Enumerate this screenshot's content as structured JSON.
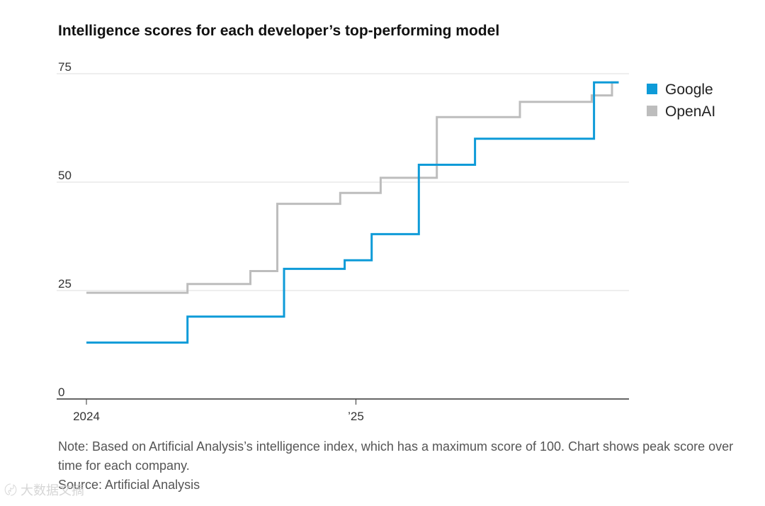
{
  "title": "Intelligence scores for each developer’s top-performing model",
  "note": "Note: Based on Artificial Analysis’s intelligence index, which has a maximum score of 100. Chart shows peak score over time for each company.",
  "source": "Source: Artificial Analysis",
  "watermark": "大数据文摘",
  "chart_data": {
    "type": "line",
    "step": true,
    "title": "Intelligence scores for each developer’s top-performing model",
    "xlabel": "",
    "ylabel": "",
    "ylim": [
      0,
      75
    ],
    "yticks": [
      0,
      25,
      50,
      75
    ],
    "xlim": [
      0,
      24
    ],
    "xticks": [
      {
        "value": 0,
        "label": "2024"
      },
      {
        "value": 12,
        "label": "’25"
      }
    ],
    "legend_position": "top-right",
    "series": [
      {
        "name": "Google",
        "color": "#0e9bd8",
        "points": [
          [
            0,
            13
          ],
          [
            4.5,
            13
          ],
          [
            4.5,
            19
          ],
          [
            8.8,
            19
          ],
          [
            8.8,
            30
          ],
          [
            11.5,
            30
          ],
          [
            11.5,
            32
          ],
          [
            12.7,
            32
          ],
          [
            12.7,
            38
          ],
          [
            14.8,
            38
          ],
          [
            14.8,
            54
          ],
          [
            17.3,
            54
          ],
          [
            17.3,
            60
          ],
          [
            22.6,
            60
          ],
          [
            22.6,
            73
          ],
          [
            23.7,
            73
          ]
        ]
      },
      {
        "name": "OpenAI",
        "color": "#bdbdbd",
        "points": [
          [
            0,
            24.5
          ],
          [
            4.5,
            24.5
          ],
          [
            4.5,
            26.5
          ],
          [
            7.3,
            26.5
          ],
          [
            7.3,
            29.5
          ],
          [
            8.5,
            29.5
          ],
          [
            8.5,
            45
          ],
          [
            11.3,
            45
          ],
          [
            11.3,
            47.5
          ],
          [
            13.1,
            47.5
          ],
          [
            13.1,
            51
          ],
          [
            15.6,
            51
          ],
          [
            15.6,
            65
          ],
          [
            19.3,
            65
          ],
          [
            19.3,
            68.5
          ],
          [
            22.5,
            68.5
          ],
          [
            22.5,
            70
          ],
          [
            23.4,
            70
          ],
          [
            23.4,
            73
          ],
          [
            23.7,
            73
          ]
        ]
      }
    ]
  }
}
